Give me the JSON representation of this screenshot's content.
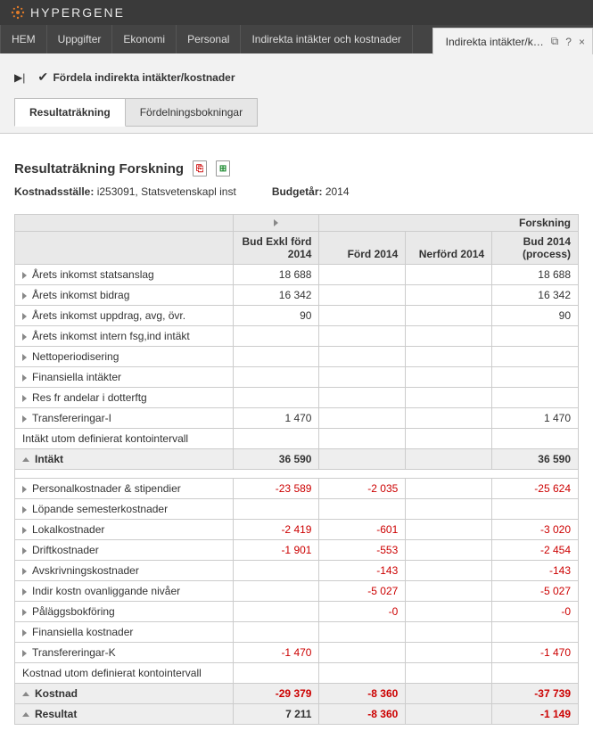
{
  "brand": "HYPERGENE",
  "menu": {
    "items": [
      "HEM",
      "Uppgifter",
      "Ekonomi",
      "Personal",
      "Indirekta intäkter och kostnader"
    ]
  },
  "crumb": {
    "label": "Indirekta intäkter/k…"
  },
  "actions": {
    "distribute": "Fördela indirekta intäkter/kostnader"
  },
  "tabs": {
    "t0": "Resultaträkning",
    "t1": "Fördelningsbokningar"
  },
  "page": {
    "title": "Resultaträkning Forskning",
    "meta1_label": "Kostnadsställe:",
    "meta1_value": "i253091, Statsvetenskapl inst",
    "meta2_label": "Budgetår:",
    "meta2_value": "2014"
  },
  "table": {
    "super_header": "Forskning",
    "columns": {
      "c1": "Bud Exkl förd 2014",
      "c2": "Förd 2014",
      "c3": "Nerförd 2014",
      "c4": "Bud 2014 (process)"
    },
    "rows": [
      {
        "kind": "row",
        "label": "Årets inkomst statsanslag",
        "v": [
          "18 688",
          "",
          "",
          "18 688"
        ],
        "neg": [
          0,
          0,
          0,
          0
        ]
      },
      {
        "kind": "row",
        "label": "Årets inkomst bidrag",
        "v": [
          "16 342",
          "",
          "",
          "16 342"
        ],
        "neg": [
          0,
          0,
          0,
          0
        ]
      },
      {
        "kind": "row",
        "label": "Årets inkomst uppdrag, avg, övr.",
        "v": [
          "90",
          "",
          "",
          "90"
        ],
        "neg": [
          0,
          0,
          0,
          0
        ]
      },
      {
        "kind": "row",
        "label": "Årets inkomst intern fsg,ind intäkt",
        "v": [
          "",
          "",
          "",
          ""
        ],
        "neg": [
          0,
          0,
          0,
          0
        ]
      },
      {
        "kind": "row",
        "label": "Nettoperiodisering",
        "v": [
          "",
          "",
          "",
          ""
        ],
        "neg": [
          0,
          0,
          0,
          0
        ]
      },
      {
        "kind": "row",
        "label": "Finansiella intäkter",
        "v": [
          "",
          "",
          "",
          ""
        ],
        "neg": [
          0,
          0,
          0,
          0
        ]
      },
      {
        "kind": "row",
        "label": "Res fr andelar i dotterftg",
        "v": [
          "",
          "",
          "",
          ""
        ],
        "neg": [
          0,
          0,
          0,
          0
        ]
      },
      {
        "kind": "row",
        "label": "Transfereringar-I",
        "v": [
          "1 470",
          "",
          "",
          "1 470"
        ],
        "neg": [
          0,
          0,
          0,
          0
        ]
      },
      {
        "kind": "plain",
        "label": "Intäkt utom definierat kontointervall",
        "v": [
          "",
          "",
          "",
          ""
        ],
        "neg": [
          0,
          0,
          0,
          0
        ]
      },
      {
        "kind": "total",
        "label": "Intäkt",
        "v": [
          "36 590",
          "",
          "",
          "36 590"
        ],
        "neg": [
          0,
          0,
          0,
          0
        ]
      },
      {
        "kind": "spacer"
      },
      {
        "kind": "row",
        "label": "Personalkostnader & stipendier",
        "v": [
          "-23 589",
          "-2 035",
          "",
          "-25 624"
        ],
        "neg": [
          1,
          1,
          0,
          1
        ]
      },
      {
        "kind": "row",
        "label": "Löpande semesterkostnader",
        "v": [
          "",
          "",
          "",
          ""
        ],
        "neg": [
          0,
          0,
          0,
          0
        ]
      },
      {
        "kind": "row",
        "label": "Lokalkostnader",
        "v": [
          "-2 419",
          "-601",
          "",
          "-3 020"
        ],
        "neg": [
          1,
          1,
          0,
          1
        ]
      },
      {
        "kind": "row",
        "label": "Driftkostnader",
        "v": [
          "-1 901",
          "-553",
          "",
          "-2 454"
        ],
        "neg": [
          1,
          1,
          0,
          1
        ]
      },
      {
        "kind": "row",
        "label": "Avskrivningskostnader",
        "v": [
          "",
          "-143",
          "",
          "-143"
        ],
        "neg": [
          0,
          1,
          0,
          1
        ]
      },
      {
        "kind": "row",
        "label": "Indir kostn ovanliggande nivåer",
        "v": [
          "",
          "-5 027",
          "",
          "-5 027"
        ],
        "neg": [
          0,
          1,
          0,
          1
        ]
      },
      {
        "kind": "row",
        "label": "Påläggsbokföring",
        "v": [
          "",
          "-0",
          "",
          "-0"
        ],
        "neg": [
          0,
          1,
          0,
          1
        ]
      },
      {
        "kind": "row",
        "label": "Finansiella kostnader",
        "v": [
          "",
          "",
          "",
          ""
        ],
        "neg": [
          0,
          0,
          0,
          0
        ]
      },
      {
        "kind": "row",
        "label": "Transfereringar-K",
        "v": [
          "-1 470",
          "",
          "",
          "-1 470"
        ],
        "neg": [
          1,
          0,
          0,
          1
        ]
      },
      {
        "kind": "plain",
        "label": "Kostnad utom definierat kontointervall",
        "v": [
          "",
          "",
          "",
          ""
        ],
        "neg": [
          0,
          0,
          0,
          0
        ]
      },
      {
        "kind": "total",
        "label": "Kostnad",
        "v": [
          "-29 379",
          "-8 360",
          "",
          "-37 739"
        ],
        "neg": [
          1,
          1,
          0,
          1
        ]
      },
      {
        "kind": "total",
        "label": "Resultat",
        "v": [
          "7 211",
          "-8 360",
          "",
          "-1 149"
        ],
        "neg": [
          0,
          1,
          0,
          1
        ]
      }
    ]
  },
  "colors": {
    "neg": "#cc0000",
    "header_bg": "#e9e9e9",
    "border": "#cccccc"
  }
}
